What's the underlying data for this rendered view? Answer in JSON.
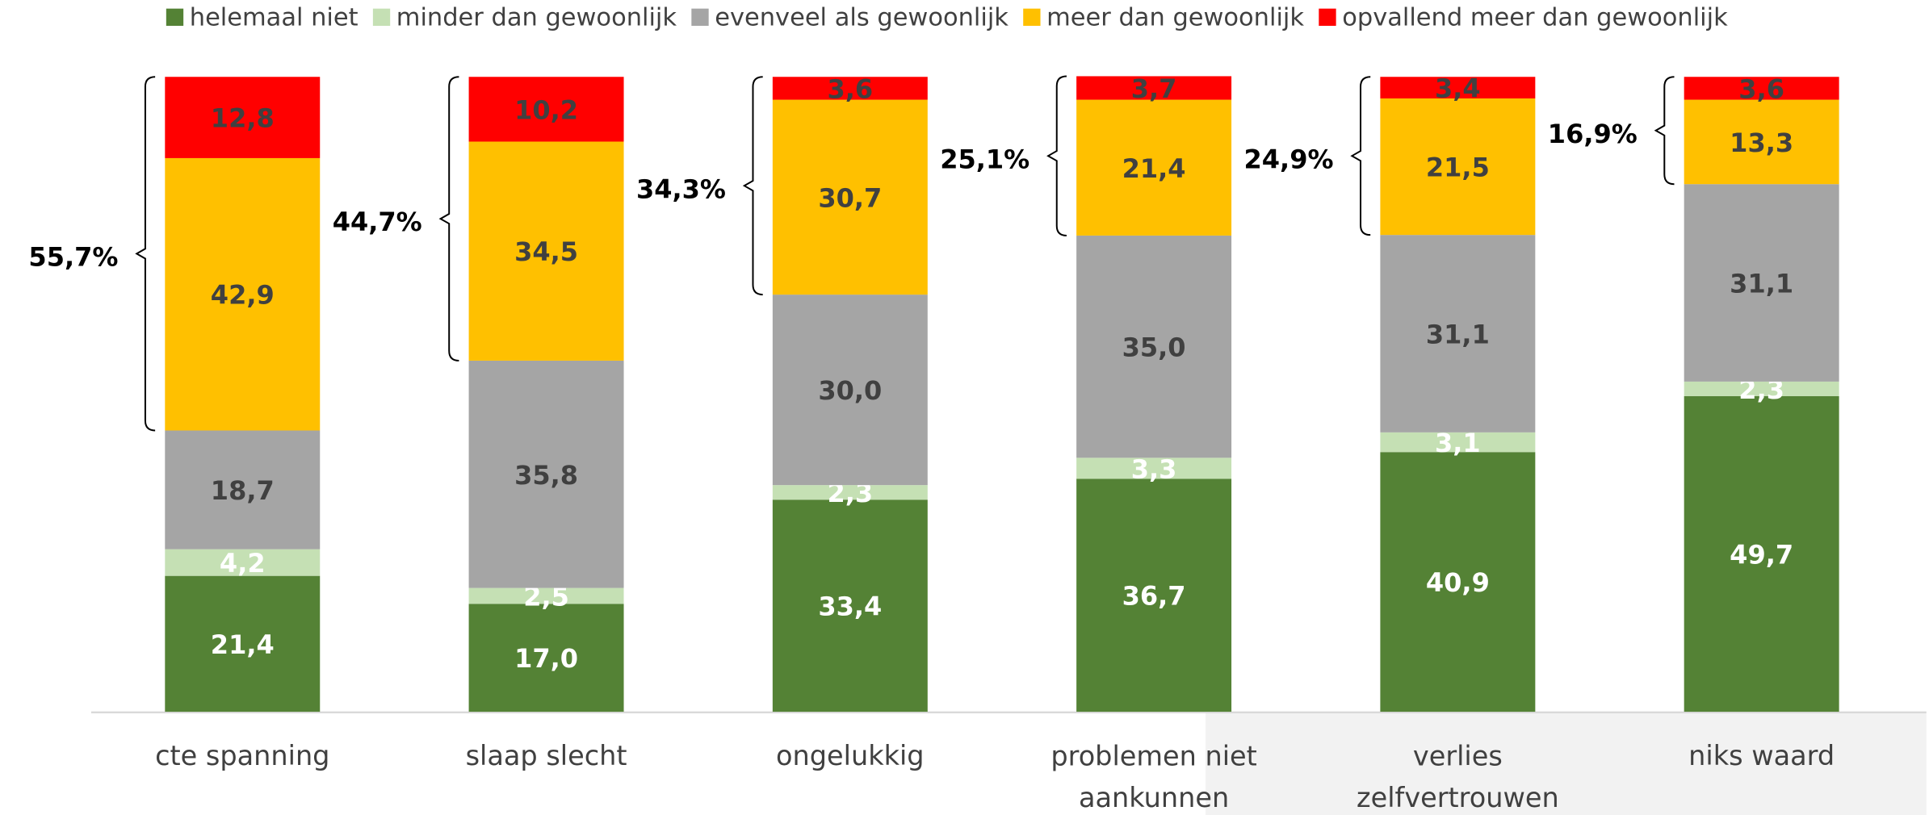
{
  "chart_data": {
    "type": "stacked_bar",
    "categories": [
      "cte spanning",
      "slaap slecht",
      "ongelukkig",
      "problemen niet aankunnen",
      "verlies zelfvertrouwen",
      "niks waard"
    ],
    "series": [
      {
        "name": "helemaal niet",
        "color": "#548235",
        "values": [
          21.4,
          17.0,
          33.4,
          36.7,
          40.9,
          49.7
        ],
        "value_labels": [
          "21,4",
          "17,0",
          "33,4",
          "36,7",
          "40,9",
          "49,7"
        ]
      },
      {
        "name": "minder dan gewoonlijk",
        "color": "#c5e0b4",
        "values": [
          4.2,
          2.5,
          2.3,
          3.3,
          3.1,
          2.3
        ],
        "value_labels": [
          "4,2",
          "2,5",
          "2,3",
          "3,3",
          "3,1",
          "2,3"
        ]
      },
      {
        "name": "evenveel als gewoonlijk",
        "color": "#a5a5a5",
        "values": [
          18.7,
          35.8,
          30.0,
          35.0,
          31.1,
          31.1
        ],
        "value_labels": [
          "18,7",
          "35,8",
          "30,0",
          "35,0",
          "31,1",
          "31,1"
        ]
      },
      {
        "name": "meer dan gewoonlijk",
        "color": "#ffc000",
        "values": [
          42.9,
          34.5,
          30.7,
          21.4,
          21.5,
          13.3
        ],
        "value_labels": [
          "42,9",
          "34,5",
          "30,7",
          "21,4",
          "21,5",
          "13,3"
        ]
      },
      {
        "name": "opvallend meer dan gewoonlijk",
        "color": "#ff0000",
        "values": [
          12.8,
          10.2,
          3.6,
          3.7,
          3.4,
          3.6
        ],
        "value_labels": [
          "12,8",
          "10,2",
          "3,6",
          "3,7",
          "3,4",
          "3,6"
        ]
      }
    ],
    "bracket_labels": [
      "55,7%",
      "44,7%",
      "34,3%",
      "25,1%",
      "24,9%",
      "16,9%"
    ]
  }
}
